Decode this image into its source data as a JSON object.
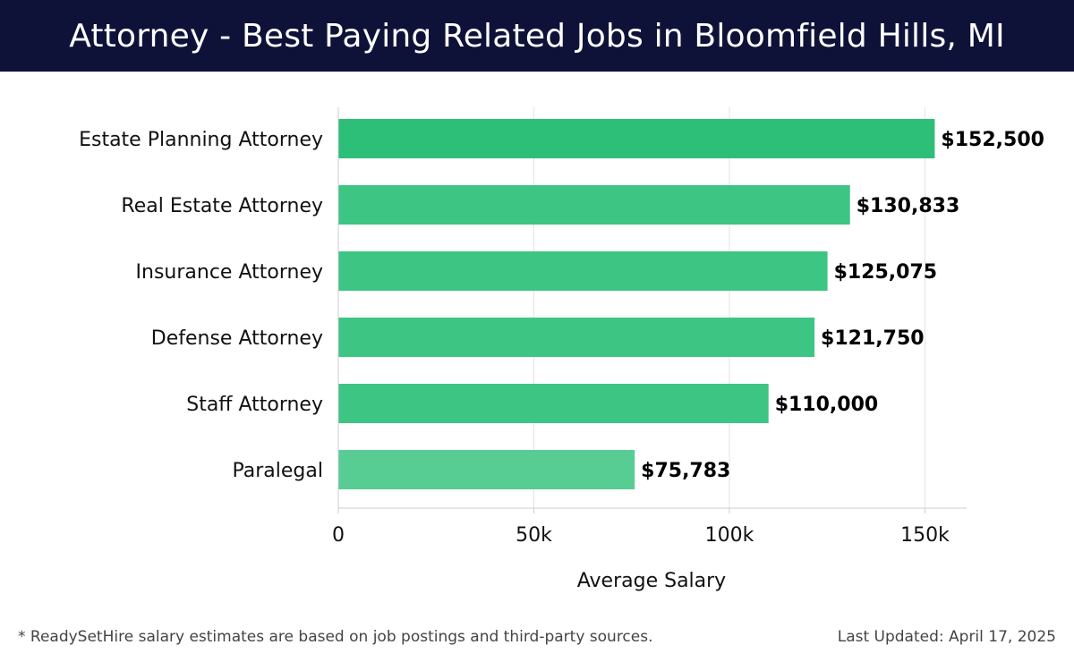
{
  "header": {
    "title": "Attorney - Best Paying Related Jobs in Bloomfield Hills, MI"
  },
  "chart_data": {
    "type": "bar",
    "orientation": "horizontal",
    "categories": [
      "Estate Planning Attorney",
      "Real Estate Attorney",
      "Insurance Attorney",
      "Defense Attorney",
      "Staff Attorney",
      "Paralegal"
    ],
    "values": [
      152500,
      130833,
      125075,
      121750,
      110000,
      75783
    ],
    "value_labels": [
      "$152,500",
      "$130,833",
      "$125,075",
      "$121,750",
      "$110,000",
      "$75,783"
    ],
    "bar_colors": [
      "#2dbe78",
      "#3cc583",
      "#3cc583",
      "#3cc583",
      "#3cc583",
      "#57cd94"
    ],
    "xlim": [
      0,
      160000
    ],
    "xticks": [
      0,
      50000,
      100000,
      150000
    ],
    "xtick_labels": [
      "0",
      "50k",
      "100k",
      "150k"
    ],
    "xlabel": "Average Salary",
    "ylabel": "",
    "grid": true
  },
  "footer": {
    "note": "* ReadySetHire salary estimates are based on job postings and third-party sources.",
    "updated": "Last Updated: April 17, 2025"
  }
}
